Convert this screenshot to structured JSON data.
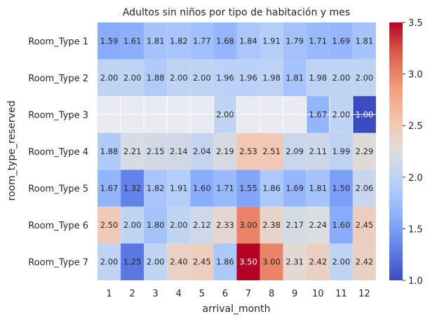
{
  "chart_data": {
    "type": "heatmap",
    "title": "Adultos sin niños por tipo de habitación y mes",
    "xlabel": "arrival_month",
    "ylabel": "room_type_reserved",
    "x": [
      "1",
      "2",
      "3",
      "4",
      "5",
      "6",
      "7",
      "8",
      "9",
      "10",
      "11",
      "12"
    ],
    "y": [
      "Room_Type 1",
      "Room_Type 2",
      "Room_Type 3",
      "Room_Type 4",
      "Room_Type 5",
      "Room_Type 6",
      "Room_Type 7"
    ],
    "values": [
      [
        1.59,
        1.61,
        1.81,
        1.82,
        1.77,
        1.68,
        1.84,
        1.91,
        1.79,
        1.71,
        1.69,
        1.81
      ],
      [
        2.0,
        2.0,
        1.88,
        2.0,
        2.0,
        1.96,
        1.96,
        1.98,
        1.81,
        1.98,
        2.0,
        2.0
      ],
      [
        null,
        null,
        null,
        null,
        null,
        2.0,
        null,
        null,
        null,
        1.67,
        2.0,
        1.0
      ],
      [
        1.88,
        2.21,
        2.15,
        2.14,
        2.04,
        2.19,
        2.53,
        2.51,
        2.09,
        2.11,
        1.99,
        2.29
      ],
      [
        1.67,
        1.32,
        1.82,
        1.91,
        1.6,
        1.71,
        1.55,
        1.86,
        1.69,
        1.81,
        1.5,
        2.06
      ],
      [
        2.5,
        2.0,
        1.8,
        2.0,
        2.12,
        2.33,
        3.0,
        2.38,
        2.17,
        2.24,
        1.6,
        2.45
      ],
      [
        2.0,
        1.25,
        2.0,
        2.4,
        2.45,
        1.86,
        3.5,
        3.0,
        2.31,
        2.42,
        2.0,
        2.42
      ]
    ],
    "colormap": "coolwarm",
    "vmin": 1.0,
    "vmax": 3.5,
    "colorbar_ticks": [
      "1.0",
      "1.5",
      "2.0",
      "2.5",
      "3.0",
      "3.5"
    ],
    "missing_color": "#eaeaf2",
    "grid_color": "#ffffff"
  }
}
